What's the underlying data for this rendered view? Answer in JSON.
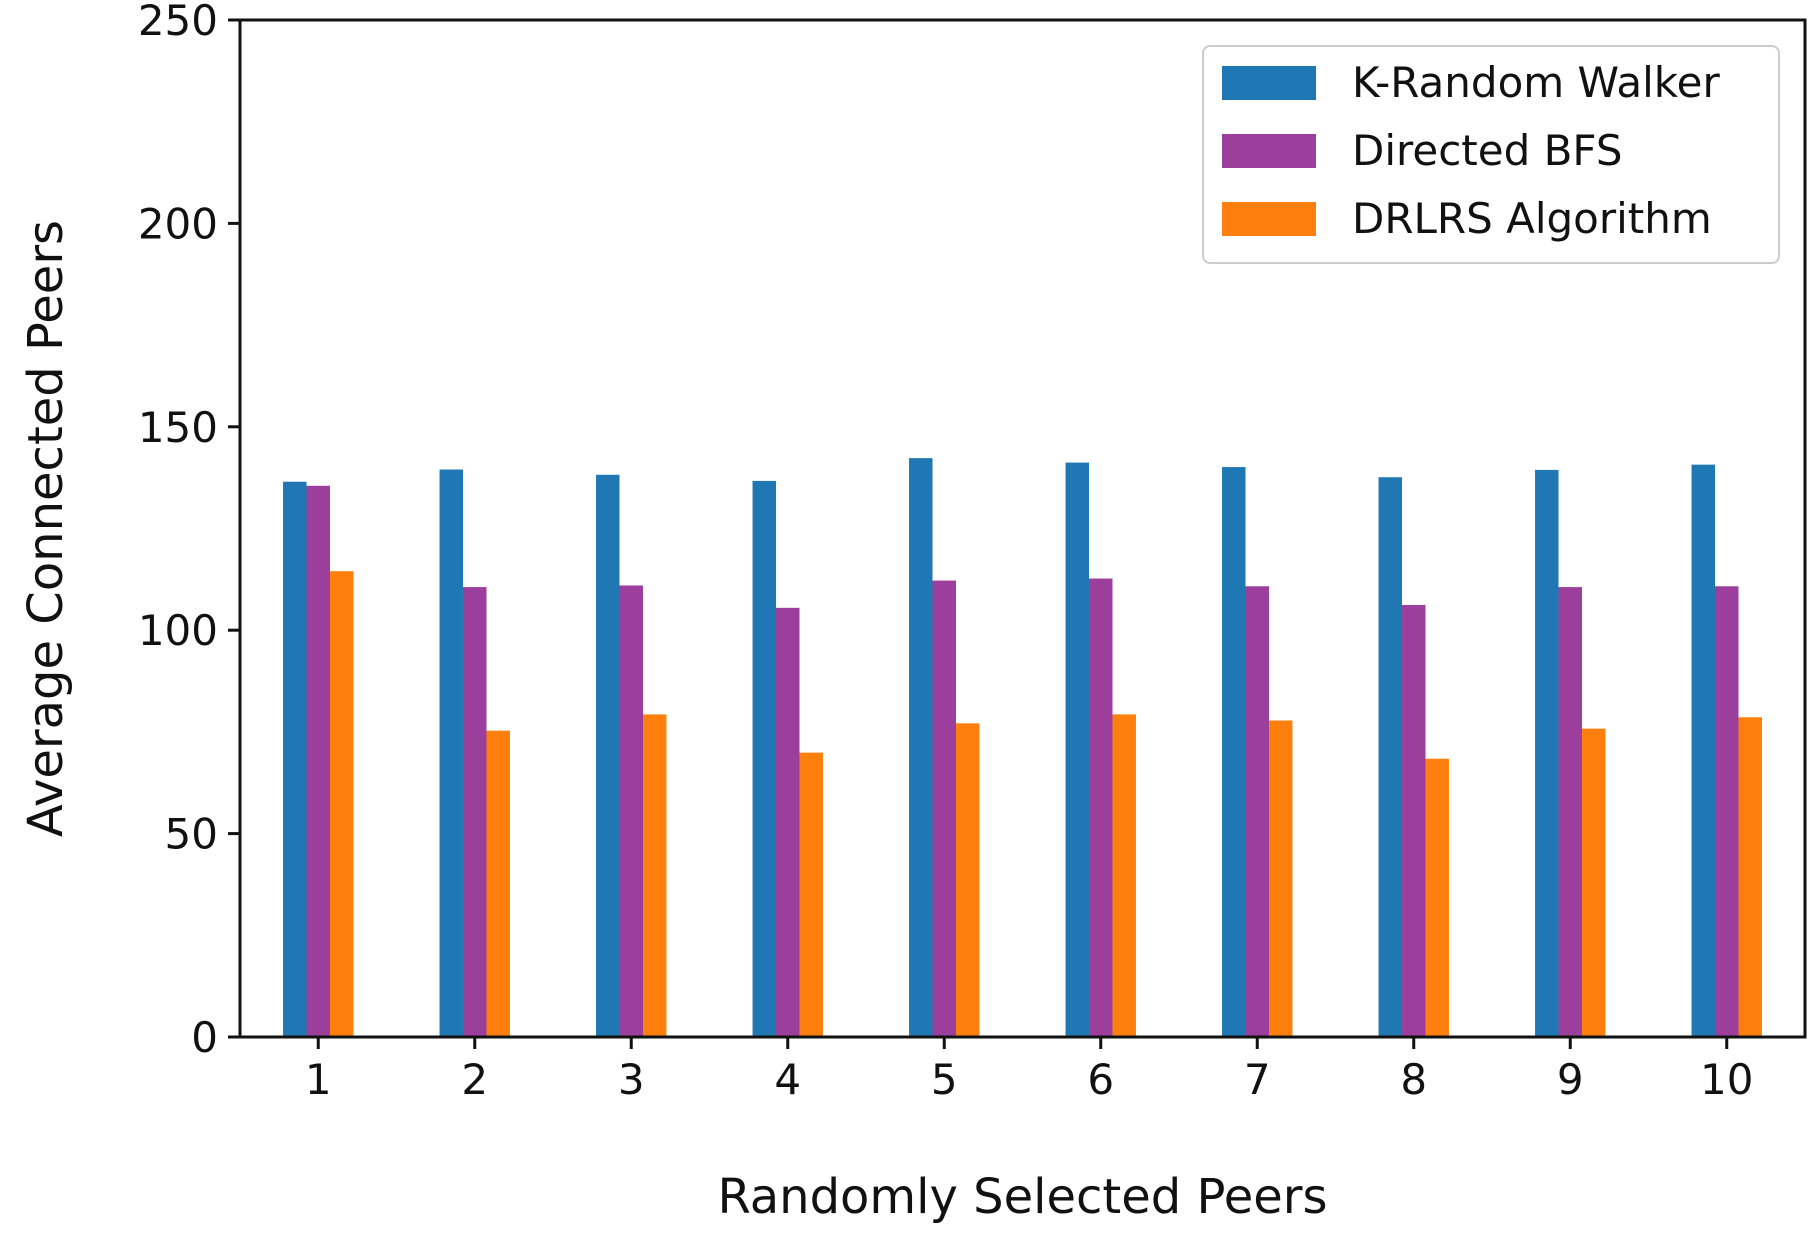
{
  "chart_data": {
    "type": "bar",
    "title": "",
    "xlabel": "Randomly Selected Peers",
    "ylabel": "Average Connected Peers",
    "categories": [
      "1",
      "2",
      "3",
      "4",
      "5",
      "6",
      "7",
      "8",
      "9",
      "10"
    ],
    "ylim": [
      0,
      250
    ],
    "yticks": [
      "0",
      "50",
      "100",
      "150",
      "200",
      "250"
    ],
    "grid": false,
    "legend_position": "top-right",
    "series": [
      {
        "name": "K-Random Walker",
        "color": "#1f77b4",
        "values": [
          136.5,
          139.5,
          138.2,
          136.7,
          142.3,
          141.2,
          140.1,
          137.6,
          139.4,
          140.7
        ]
      },
      {
        "name": "Directed BFS",
        "color": "#9c3f9c",
        "values": [
          135.5,
          110.6,
          111.0,
          105.5,
          112.2,
          112.7,
          110.8,
          106.2,
          110.6,
          110.8
        ]
      },
      {
        "name": "DRLRS Algorithm",
        "color": "#ff7f0e",
        "values": [
          114.5,
          75.3,
          79.3,
          69.9,
          77.1,
          79.3,
          77.8,
          68.4,
          75.8,
          78.6
        ]
      }
    ]
  }
}
